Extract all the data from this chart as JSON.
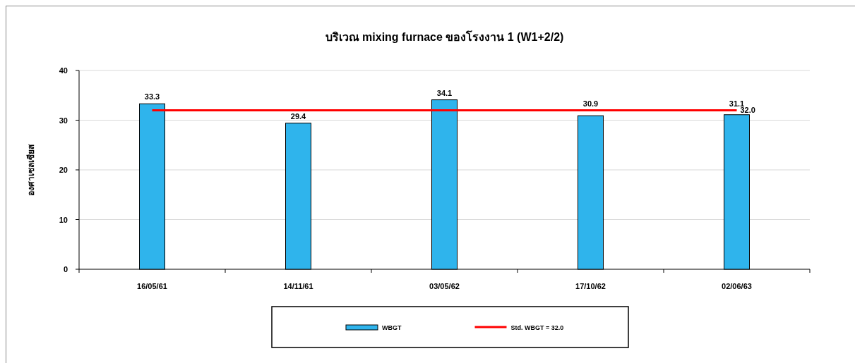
{
  "chart_data": {
    "type": "bar",
    "title": "บริเวณ mixing furnace ของโรงงาน 1 (W1+2/2)",
    "ylabel": "องศาเซลเซียส",
    "categories": [
      "16/05/61",
      "14/11/61",
      "03/05/62",
      "17/10/62",
      "02/06/63"
    ],
    "series": [
      {
        "name": "WBGT",
        "color": "#2fb4ec",
        "values": [
          33.3,
          29.4,
          34.1,
          30.9,
          31.1
        ],
        "value_labels": [
          "33.3",
          "29.4",
          "34.1",
          "30.9",
          "31.1"
        ]
      },
      {
        "name": "Std. WBGT = 32.0",
        "type": "line",
        "color": "#ff0000",
        "values": [
          32.0,
          32.0,
          32.0,
          32.0,
          32.0
        ],
        "value_labels": [
          null,
          null,
          null,
          null,
          "32.0"
        ]
      }
    ],
    "ylim": [
      0,
      40
    ],
    "yticks": [
      0,
      10,
      20,
      30,
      40
    ],
    "grid": "y",
    "legend": "bottom"
  }
}
